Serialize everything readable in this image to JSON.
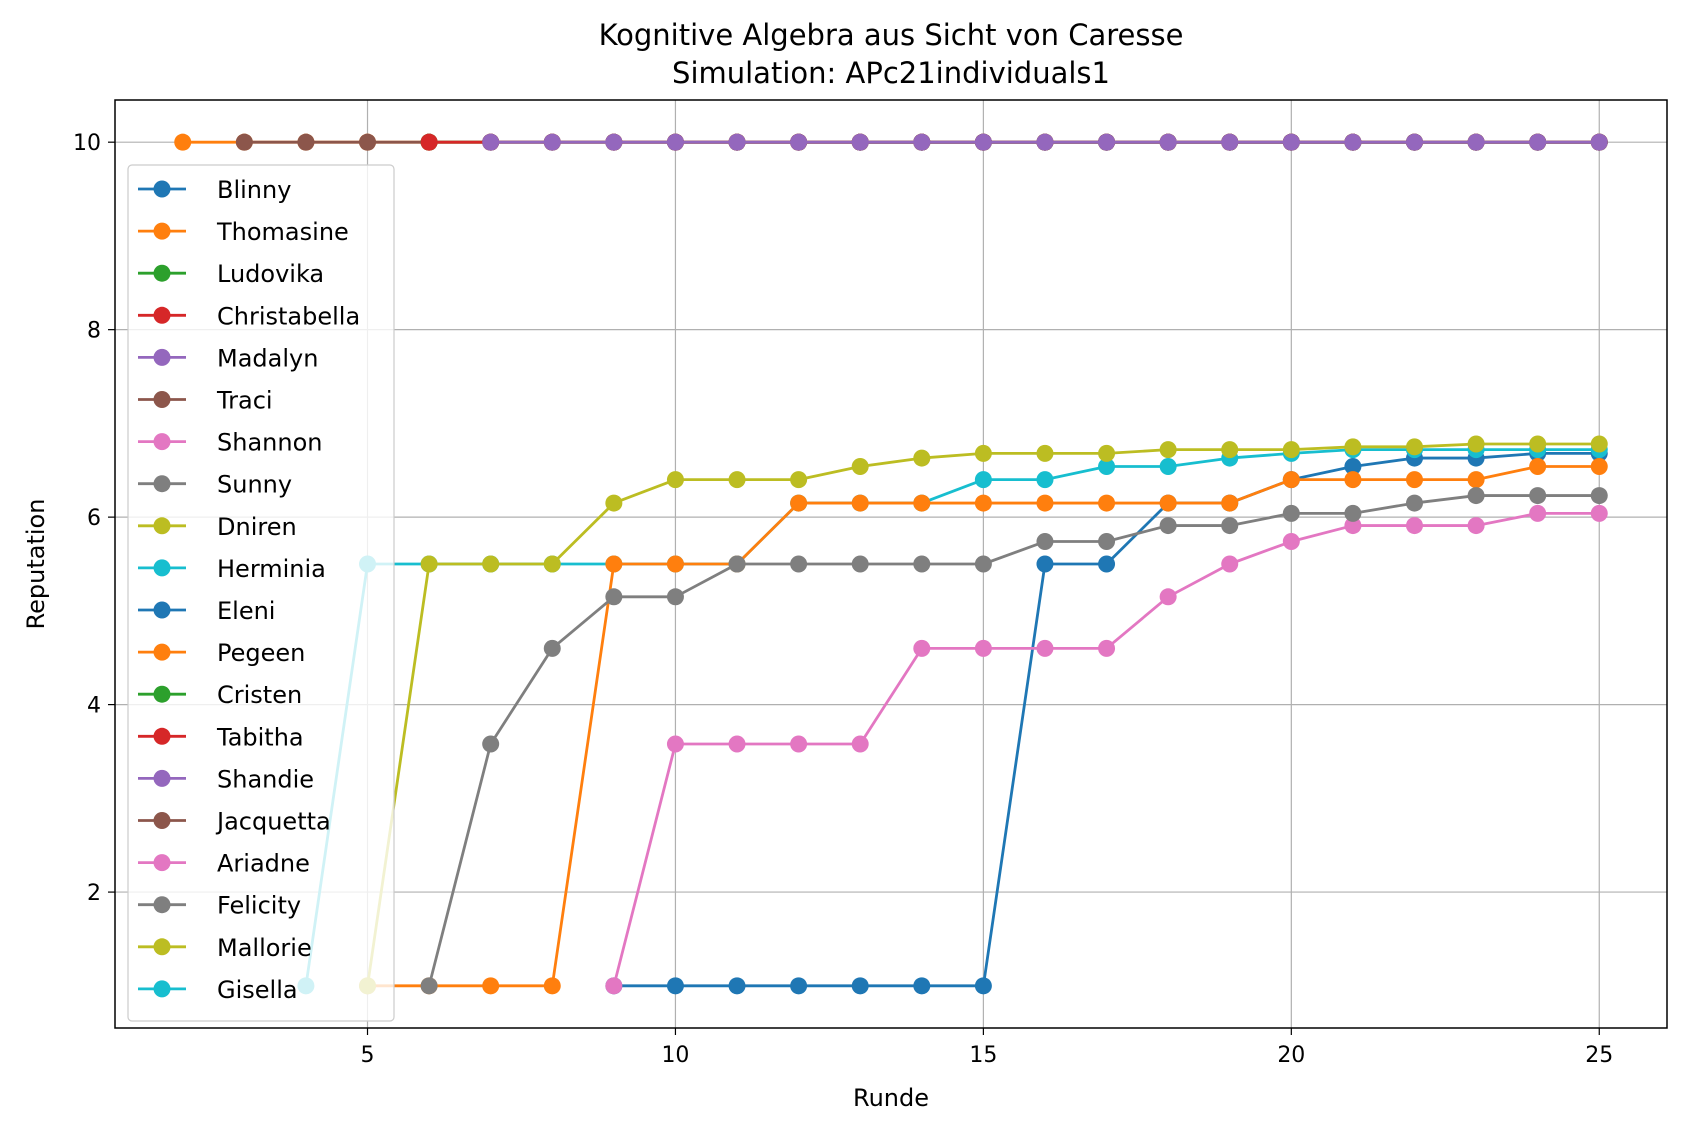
{
  "chart_data": {
    "type": "line",
    "title": "Kognitive Algebra aus Sicht von Caresse",
    "subtitle": "Simulation: APc21individuals1",
    "xlabel": "Runde",
    "ylabel": "Reputation",
    "xlim": [
      0.9,
      26.1
    ],
    "ylim": [
      0.55,
      10.45
    ],
    "xticks": [
      5,
      10,
      15,
      20,
      25
    ],
    "yticks": [
      2,
      4,
      6,
      8,
      10
    ],
    "grid": true,
    "legend_position": "upper-left",
    "series": [
      {
        "name": "Blinny",
        "color": "#1f77b4",
        "x": [],
        "y": []
      },
      {
        "name": "Thomasine",
        "color": "#ff7f0e",
        "x": [
          2,
          3,
          4,
          5,
          6,
          7,
          8,
          9,
          10,
          11,
          12,
          13,
          14,
          15,
          16,
          17,
          18,
          19,
          20,
          21,
          22,
          23,
          24,
          25
        ],
        "y": [
          10,
          10,
          10,
          10,
          10,
          10,
          10,
          10,
          10,
          10,
          10,
          10,
          10,
          10,
          10,
          10,
          10,
          10,
          10,
          10,
          10,
          10,
          10,
          10
        ]
      },
      {
        "name": "Ludovika",
        "color": "#2ca02c",
        "x": [],
        "y": []
      },
      {
        "name": "Christabella",
        "color": "#d62728",
        "x": [],
        "y": []
      },
      {
        "name": "Madalyn",
        "color": "#9467bd",
        "x": [],
        "y": []
      },
      {
        "name": "Traci",
        "color": "#8c564b",
        "x": [
          3,
          4,
          5,
          6,
          7,
          8,
          9,
          10,
          11,
          12,
          13,
          14,
          15,
          16,
          17,
          18,
          19,
          20,
          21,
          22,
          23,
          24,
          25
        ],
        "y": [
          10,
          10,
          10,
          10,
          10,
          10,
          10,
          10,
          10,
          10,
          10,
          10,
          10,
          10,
          10,
          10,
          10,
          10,
          10,
          10,
          10,
          10,
          10
        ]
      },
      {
        "name": "Shannon",
        "color": "#e377c2",
        "x": [],
        "y": []
      },
      {
        "name": "Sunny",
        "color": "#7f7f7f",
        "x": [],
        "y": []
      },
      {
        "name": "Dniren",
        "color": "#bcbd22",
        "x": [],
        "y": []
      },
      {
        "name": "Herminia",
        "color": "#17becf",
        "x": [
          4,
          5,
          6,
          7,
          8,
          9,
          10,
          11,
          12,
          13,
          14,
          15,
          16,
          17,
          18,
          19,
          20,
          21,
          22,
          23,
          24,
          25
        ],
        "y": [
          1,
          5.5,
          5.5,
          5.5,
          5.5,
          5.5,
          5.5,
          5.5,
          6.15,
          6.15,
          6.15,
          6.4,
          6.4,
          6.54,
          6.54,
          6.63,
          6.68,
          6.72,
          6.72,
          6.72,
          6.72,
          6.72
        ]
      },
      {
        "name": "Eleni",
        "color": "#1f77b4",
        "x": [],
        "y": []
      },
      {
        "name": "Pegeen",
        "color": "#ff7f0e",
        "x": [
          5,
          6,
          7,
          8,
          9,
          10,
          11,
          12,
          13,
          14,
          15,
          16,
          17,
          18,
          19,
          20,
          21,
          22,
          23,
          24,
          25
        ],
        "y": [
          1,
          1,
          1,
          1,
          5.5,
          5.5,
          5.5,
          6.15,
          6.15,
          6.15,
          6.15,
          6.15,
          6.15,
          6.15,
          6.15,
          6.4,
          6.4,
          6.4,
          6.4,
          6.54,
          6.54
        ]
      },
      {
        "name": "Cristen",
        "color": "#2ca02c",
        "x": [
          6,
          7,
          8,
          9,
          10,
          11,
          12,
          13,
          14,
          15,
          16,
          17,
          18,
          19,
          20,
          21,
          22,
          23,
          24,
          25
        ],
        "y": [
          10,
          10,
          10,
          10,
          10,
          10,
          10,
          10,
          10,
          10,
          10,
          10,
          10,
          10,
          10,
          10,
          10,
          10,
          10,
          10
        ]
      },
      {
        "name": "Tabitha",
        "color": "#d62728",
        "x": [
          6,
          7,
          8,
          9,
          10,
          11,
          12,
          13,
          14,
          15,
          16,
          17,
          18,
          19,
          20,
          21,
          22,
          23,
          24,
          25
        ],
        "y": [
          10,
          10,
          10,
          10,
          10,
          10,
          10,
          10,
          10,
          10,
          10,
          10,
          10,
          10,
          10,
          10,
          10,
          10,
          10,
          10
        ]
      },
      {
        "name": "Shandie",
        "color": "#9467bd",
        "x": [
          7,
          8,
          9,
          10,
          11,
          12,
          13,
          14,
          15,
          16,
          17,
          18,
          19,
          20,
          21,
          22,
          23,
          24,
          25
        ],
        "y": [
          10,
          10,
          10,
          10,
          10,
          10,
          10,
          10,
          10,
          10,
          10,
          10,
          10,
          10,
          10,
          10,
          10,
          10,
          10
        ]
      },
      {
        "name": "Jacquetta",
        "color": "#8c564b",
        "x": [],
        "y": []
      },
      {
        "name": "Ariadne",
        "color": "#e377c2",
        "x": [
          9,
          10,
          11,
          12,
          13,
          14,
          15,
          16,
          17,
          18,
          19,
          20,
          21,
          22,
          23,
          24,
          25
        ],
        "y": [
          1,
          3.58,
          3.58,
          3.58,
          3.58,
          4.6,
          4.6,
          4.6,
          4.6,
          5.15,
          5.5,
          5.74,
          5.91,
          5.91,
          5.91,
          6.04,
          6.04
        ]
      },
      {
        "name": "Felicity",
        "color": "#7f7f7f",
        "x": [
          6,
          7,
          8,
          9,
          10,
          11,
          12,
          13,
          14,
          15,
          16,
          17,
          18,
          19,
          20,
          21,
          22,
          23,
          24,
          25
        ],
        "y": [
          1,
          3.58,
          4.6,
          5.15,
          5.15,
          5.5,
          5.5,
          5.5,
          5.5,
          5.5,
          5.74,
          5.74,
          5.91,
          5.91,
          6.04,
          6.04,
          6.15,
          6.23,
          6.23,
          6.23
        ]
      },
      {
        "name": "Mallorie",
        "color": "#bcbd22",
        "x": [
          5,
          6,
          7,
          8,
          9,
          10,
          11,
          12,
          13,
          14,
          15,
          16,
          17,
          18,
          19,
          20,
          21,
          22,
          23,
          24,
          25
        ],
        "y": [
          1,
          5.5,
          5.5,
          5.5,
          6.15,
          6.4,
          6.4,
          6.4,
          6.54,
          6.63,
          6.68,
          6.68,
          6.68,
          6.72,
          6.72,
          6.72,
          6.75,
          6.75,
          6.78,
          6.78,
          6.78
        ]
      },
      {
        "name": "Gisella",
        "color": "#17becf",
        "x": [],
        "y": []
      }
    ],
    "extra_lines": [
      {
        "color": "#bcbd22",
        "x": [
          11,
          12,
          13,
          14,
          15,
          16,
          17,
          18,
          19,
          20,
          21,
          22,
          23,
          24,
          25
        ],
        "y": [
          10,
          10,
          10,
          10,
          10,
          10,
          10,
          10,
          10,
          10,
          10,
          10,
          10,
          10,
          10
        ]
      },
      {
        "color": "#7f7f7f",
        "x": [
          10,
          11,
          12,
          13,
          14,
          15,
          16,
          17,
          18,
          19,
          20,
          21,
          22,
          23,
          24,
          25
        ],
        "y": [
          10,
          10,
          10,
          10,
          10,
          10,
          10,
          10,
          10,
          10,
          10,
          10,
          10,
          10,
          10,
          10
        ]
      },
      {
        "color": "#e377c2",
        "x": [
          9,
          10,
          11,
          12,
          13,
          14,
          15,
          16,
          17,
          18,
          19,
          20,
          21,
          22,
          23,
          24,
          25
        ],
        "y": [
          10,
          10,
          10,
          10,
          10,
          10,
          10,
          10,
          10,
          10,
          10,
          10,
          10,
          10,
          10,
          10,
          10
        ]
      },
      {
        "color": "#1f77b4",
        "x": [
          9,
          10,
          11,
          12,
          13,
          14,
          15,
          16,
          17,
          18,
          19,
          20,
          21,
          22,
          23,
          24,
          25
        ],
        "y": [
          1,
          1,
          1,
          1,
          1,
          1,
          1,
          5.5,
          5.5,
          6.15,
          6.15,
          6.4,
          6.54,
          6.63,
          6.63,
          6.68,
          6.68
        ]
      },
      {
        "color": "#17becf",
        "x": [
          13,
          14,
          15,
          16,
          17,
          18,
          19,
          20,
          21,
          22,
          23,
          24,
          25
        ],
        "y": [
          10,
          10,
          10,
          10,
          10,
          10,
          10,
          10,
          10,
          10,
          10,
          10,
          10
        ]
      }
    ]
  }
}
